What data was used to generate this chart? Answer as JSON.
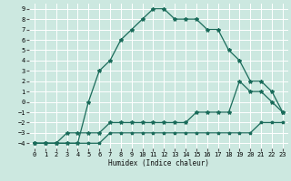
{
  "xlabel": "Humidex (Indice chaleur)",
  "background_color": "#cce8e0",
  "grid_color": "#ffffff",
  "line_color": "#1a6b5a",
  "xlim": [
    -0.5,
    23.5
  ],
  "ylim": [
    -4.5,
    9.5
  ],
  "xticks": [
    0,
    1,
    2,
    3,
    4,
    5,
    6,
    7,
    8,
    9,
    10,
    11,
    12,
    13,
    14,
    15,
    16,
    17,
    18,
    19,
    20,
    21,
    22,
    23
  ],
  "yticks": [
    -4,
    -3,
    -2,
    -1,
    0,
    1,
    2,
    3,
    4,
    5,
    6,
    7,
    8,
    9
  ],
  "curve_main_x": [
    0,
    1,
    2,
    3,
    4,
    5,
    6,
    7,
    8,
    9,
    10,
    11,
    12,
    13,
    14,
    15,
    16,
    17,
    18,
    19,
    20,
    21,
    22,
    23
  ],
  "curve_main_y": [
    -4,
    -4,
    -4,
    -4,
    -4,
    0,
    3,
    4,
    6,
    7,
    8,
    9,
    9,
    8,
    8,
    8,
    7,
    7,
    5,
    4,
    2,
    2,
    1,
    -1
  ],
  "curve_mid_x": [
    0,
    1,
    2,
    3,
    4,
    5,
    6,
    7,
    8,
    9,
    10,
    11,
    12,
    13,
    14,
    15,
    16,
    17,
    18,
    19,
    20,
    21,
    22,
    23
  ],
  "curve_mid_y": [
    -4,
    -4,
    -4,
    -3,
    -3,
    -3,
    -3,
    -2,
    -2,
    -2,
    -2,
    -2,
    -2,
    -2,
    -2,
    -1,
    -1,
    -1,
    -1,
    2,
    1,
    1,
    0,
    -1
  ],
  "curve_low_x": [
    0,
    1,
    2,
    3,
    4,
    5,
    6,
    7,
    8,
    9,
    10,
    11,
    12,
    13,
    14,
    15,
    16,
    17,
    18,
    19,
    20,
    21,
    22,
    23
  ],
  "curve_low_y": [
    -4,
    -4,
    -4,
    -4,
    -4,
    -4,
    -4,
    -3,
    -3,
    -3,
    -3,
    -3,
    -3,
    -3,
    -3,
    -3,
    -3,
    -3,
    -3,
    -3,
    -3,
    -2,
    -2,
    -2
  ]
}
